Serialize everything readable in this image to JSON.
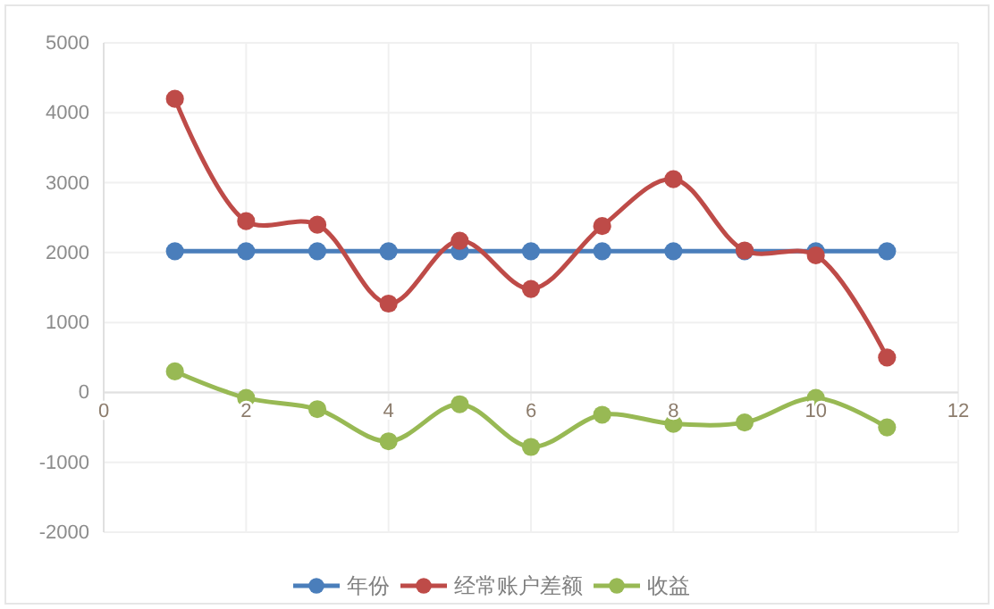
{
  "chart_data": {
    "type": "line",
    "x": [
      1,
      2,
      3,
      4,
      5,
      6,
      7,
      8,
      9,
      10,
      11
    ],
    "series": [
      {
        "name": "年份",
        "color": "#4a7ebb",
        "values": [
          2020,
          2020,
          2020,
          2020,
          2020,
          2020,
          2020,
          2020,
          2020,
          2020,
          2020
        ]
      },
      {
        "name": "经常账户差额",
        "color": "#be4b48",
        "values": [
          4200,
          2450,
          2400,
          1270,
          2170,
          1480,
          2380,
          3050,
          2030,
          1960,
          500
        ]
      },
      {
        "name": "收益",
        "color": "#98b954",
        "values": [
          300,
          -80,
          -240,
          -700,
          -170,
          -780,
          -320,
          -450,
          -430,
          -80,
          -500
        ]
      }
    ],
    "xlim": [
      0,
      12
    ],
    "xticks": [
      0,
      2,
      4,
      6,
      8,
      10,
      12
    ],
    "ylim": [
      -2000,
      5000
    ],
    "yticks": [
      -2000,
      -1000,
      0,
      1000,
      2000,
      3000,
      4000,
      5000
    ],
    "grid": true,
    "legend": "bottom",
    "marker": "circle",
    "line_style": "solid"
  }
}
